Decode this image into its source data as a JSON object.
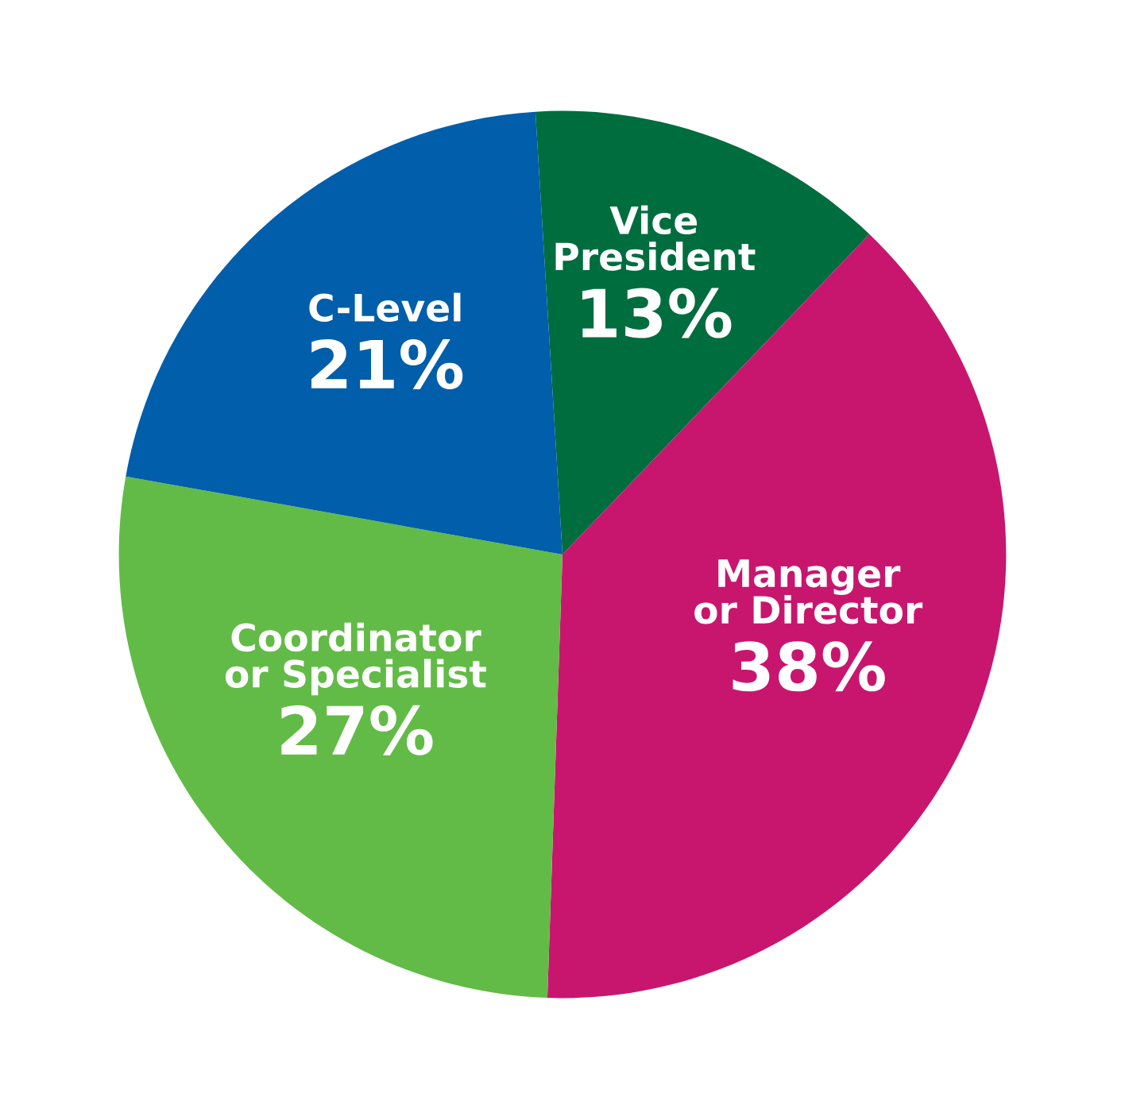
{
  "chart_data": {
    "type": "pie",
    "categories": [
      "Vice\nPresident",
      "Manager\nor Director",
      "Coordinator\nor Specialist",
      "C-Level"
    ],
    "values": [
      13,
      38,
      27,
      21
    ],
    "value_labels": [
      "13%",
      "38%",
      "27%",
      "21%"
    ],
    "colors": [
      "#006d3f",
      "#c8166e",
      "#62bb46",
      "#005eaa"
    ],
    "legend": false
  }
}
